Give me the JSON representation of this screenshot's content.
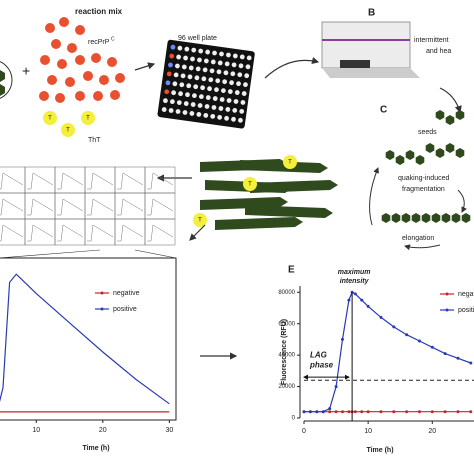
{
  "figure": {
    "plus": "+",
    "reaction_mix": "reaction mix",
    "recprp": "recPrP",
    "recprp_sup": "C",
    "tht": "ThT",
    "tht_symbol": "T",
    "plate": "96 well plate",
    "panel_b": "B",
    "instrument": [
      "intermittent",
      "and hea"
    ],
    "panel_c": "C",
    "seeds": "seeds",
    "fragmentation": [
      "quaking-induced",
      "fragmentation"
    ],
    "elongation": "elongation"
  },
  "chart_data": [
    {
      "type": "line",
      "xlabel": "Time (h)",
      "xlim": [
        4.4,
        31
      ],
      "ylim": [
        0,
        100
      ],
      "xticks": [
        10,
        20,
        30
      ],
      "x": [
        4.4,
        5,
        6,
        7,
        8,
        10,
        15,
        20,
        25,
        30
      ],
      "series": [
        {
          "name": "negative",
          "color": "#c0272d",
          "values": [
            5,
            5,
            5,
            5,
            5,
            5,
            5,
            5,
            5,
            5
          ]
        },
        {
          "name": "positive",
          "color": "#2b3bb5",
          "values": [
            10,
            20,
            85,
            90,
            86,
            78,
            60,
            42,
            25,
            10
          ]
        }
      ]
    },
    {
      "type": "line",
      "panel": "E",
      "xlabel": "Time (h)",
      "ylabel": "Fluorescence (RFU)",
      "xlim": [
        0,
        26.5
      ],
      "ylim": [
        0,
        84000
      ],
      "xticks": [
        0,
        10,
        20
      ],
      "yticks": [
        0,
        20000,
        40000,
        60000,
        80000
      ],
      "threshold": 24000,
      "annotations": {
        "peak": [
          "maximum",
          "intensity"
        ],
        "lag": [
          "LAG",
          "phase"
        ],
        "lag_x": [
          0,
          7
        ],
        "lag_y": 26000
      },
      "x": [
        0,
        1,
        2,
        3,
        4,
        5,
        6,
        7,
        7.5,
        8,
        9,
        10,
        12,
        14,
        16,
        18,
        20,
        22,
        24,
        26
      ],
      "series": [
        {
          "name": "negative",
          "color": "#c0272d",
          "values": [
            4000,
            4000,
            4000,
            4000,
            4000,
            4000,
            4000,
            4000,
            4000,
            4000,
            4000,
            4000,
            4000,
            4000,
            4000,
            4000,
            4000,
            4000,
            4000,
            4000
          ]
        },
        {
          "name": "positive",
          "color": "#2b3bb5",
          "values": [
            4000,
            4000,
            4000,
            4000,
            6000,
            20000,
            50000,
            75000,
            80000,
            79000,
            75000,
            71000,
            64000,
            58000,
            53000,
            49000,
            45000,
            41000,
            38000,
            35000
          ]
        }
      ]
    }
  ]
}
